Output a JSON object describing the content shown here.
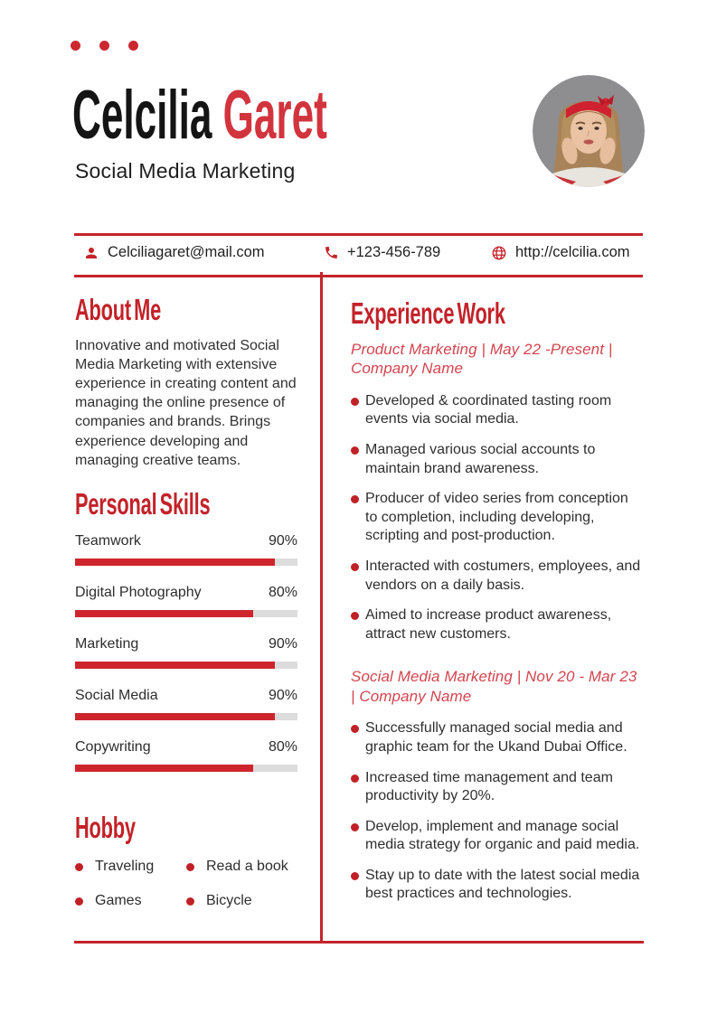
{
  "theme": {
    "accent_red": "#c5242c",
    "name_red": "#d2343e",
    "title_pink": "#d3454f",
    "bar_red": "#ce252d",
    "track_gray": "#dcdcdc",
    "text_dark": "#2f2f2f"
  },
  "header": {
    "first_name": "Celcilia",
    "last_name": "Garet",
    "subtitle": "Social Media Marketing",
    "photo": "portrait-of-woman-with-red-headband"
  },
  "contact": {
    "email": {
      "icon": "person-icon",
      "value": "Celciliagaret@mail.com"
    },
    "phone": {
      "icon": "phone-icon",
      "value": "+123-456-789"
    },
    "website": {
      "icon": "globe-icon",
      "value": "http://celcilia.com"
    }
  },
  "about": {
    "heading": "About Me",
    "text": "Innovative and motivated Social Media Marketing with extensive experience in creating content and managing the online presence of companies and brands. Brings experience developing and managing creative teams."
  },
  "skills": {
    "heading": "Personal Skills",
    "items": [
      {
        "label": "Teamwork",
        "percent": "90%",
        "value": 90
      },
      {
        "label": "Digital Photography",
        "percent": "80%",
        "value": 80
      },
      {
        "label": "Marketing",
        "percent": "90%",
        "value": 90
      },
      {
        "label": "Social Media",
        "percent": "90%",
        "value": 90
      },
      {
        "label": "Copywriting",
        "percent": "80%",
        "value": 80
      }
    ]
  },
  "hobby": {
    "heading": "Hobby",
    "items": [
      "Traveling",
      "Read a book",
      "Games",
      "Bicycle"
    ]
  },
  "experience": {
    "heading": "Experience Work",
    "jobs": [
      {
        "title": "Product Marketing | May 22 -Present | Company Name",
        "bullets": [
          "Developed & coordinated tasting room events via social media.",
          "Managed various social accounts to maintain brand awareness.",
          "Producer of video series from conception to completion, including developing, scripting and post-production.",
          "Interacted with costumers, employees, and vendors on a daily basis.",
          "Aimed to increase product awareness, attract new customers."
        ]
      },
      {
        "title": "Social Media Marketing | Nov 20 - Mar 23 | Company Name",
        "bullets": [
          "Successfully managed social media and graphic team for the Ukand Dubai Office.",
          "Increased time management and team productivity by 20%.",
          "Develop, implement and manage social media strategy for organic and paid media.",
          "Stay up to date with the latest social media best practices and technologies."
        ]
      }
    ]
  }
}
